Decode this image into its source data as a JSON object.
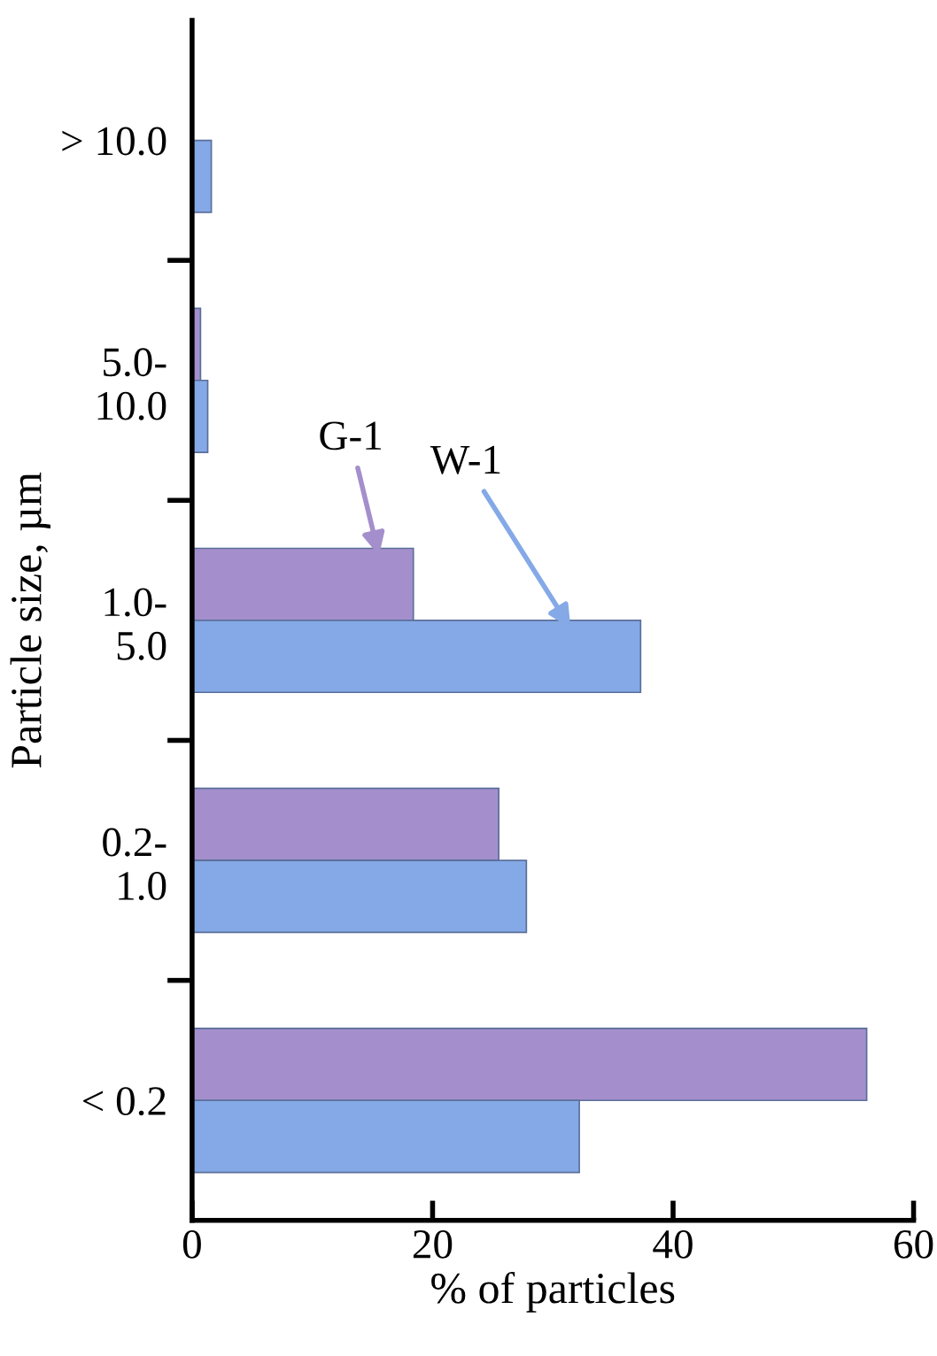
{
  "chart_data": {
    "type": "bar",
    "orientation": "horizontal",
    "ylabel": "Particle size, µm",
    "xlabel": "% of particles",
    "categories": [
      "> 10.0",
      "5.0-\n10.0",
      "1.0-\n5.0",
      "0.2-\n1.0",
      "< 0.2"
    ],
    "series": [
      {
        "name": "G-1",
        "color": "#a48fcc",
        "values": [
          null,
          0.7,
          18.4,
          25.5,
          56.1
        ]
      },
      {
        "name": "W-1",
        "color": "#85a9e6",
        "values": [
          1.6,
          1.3,
          37.3,
          27.8,
          32.2
        ]
      }
    ],
    "xlim": [
      0,
      60
    ],
    "xticks": [
      0,
      20,
      40,
      60
    ],
    "grid": false,
    "legend": false
  }
}
